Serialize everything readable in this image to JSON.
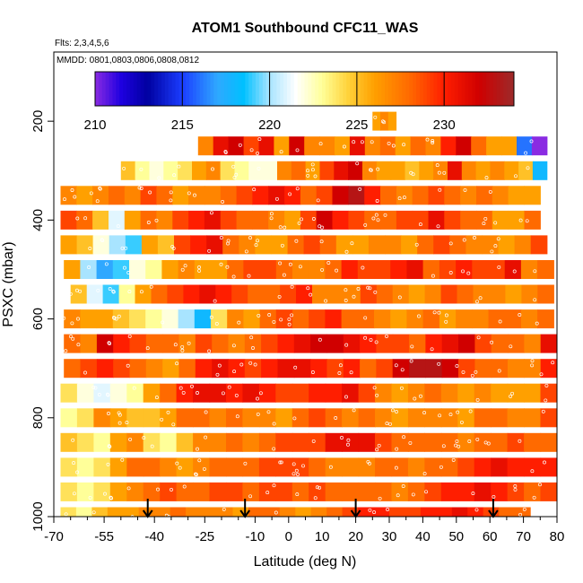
{
  "chart_data": {
    "type": "heatmap",
    "title": "ATOM1 Southbound CFC11_WAS",
    "subtitle_flights": "Flts: 2,3,4,5,6",
    "subtitle_dates": "MMDD: 0801,0803,0806,0808,0812",
    "xlabel": "Latitude (deg N)",
    "ylabel": "PSXC (mbar)",
    "xlim": [
      -70,
      80
    ],
    "ylim": [
      1000,
      60
    ],
    "x_ticks": [
      "-70",
      "-55",
      "-40",
      "-25",
      "-10",
      "0",
      "10",
      "20",
      "30",
      "40",
      "50",
      "60",
      "70",
      "80"
    ],
    "x_tick_values": [
      -70,
      -55,
      -40,
      -25,
      -10,
      0,
      10,
      20,
      30,
      40,
      50,
      60,
      70,
      80
    ],
    "x_minor_ticks": [
      -65,
      -60,
      -50,
      -45,
      -35,
      -30,
      -20,
      -15,
      -5,
      5,
      15,
      25,
      35,
      45,
      55,
      65,
      75
    ],
    "y_ticks": [
      "200",
      "400",
      "600",
      "800",
      "1000"
    ],
    "y_tick_values": [
      200,
      400,
      600,
      800,
      1000
    ],
    "colorbar": {
      "min": 210,
      "max": 234,
      "ticks": [
        "210",
        "215",
        "220",
        "225",
        "230"
      ],
      "tick_values": [
        210,
        215,
        220,
        225,
        230
      ],
      "stops": [
        {
          "v": 210,
          "c": "#8a2be2"
        },
        {
          "v": 211.5,
          "c": "#1e00e0"
        },
        {
          "v": 213,
          "c": "#0000a0"
        },
        {
          "v": 215,
          "c": "#1b3dff"
        },
        {
          "v": 217,
          "c": "#2fa8ff"
        },
        {
          "v": 218.5,
          "c": "#00c0ff"
        },
        {
          "v": 220,
          "c": "#a8e4ff"
        },
        {
          "v": 221.5,
          "c": "#ffffff"
        },
        {
          "v": 223,
          "c": "#ffff99"
        },
        {
          "v": 224.5,
          "c": "#ffd23a"
        },
        {
          "v": 226,
          "c": "#ffa000"
        },
        {
          "v": 228,
          "c": "#ff6a00"
        },
        {
          "v": 230,
          "c": "#ff1e00"
        },
        {
          "v": 232,
          "c": "#d00000"
        },
        {
          "v": 234,
          "c": "#9c2a2a"
        }
      ]
    },
    "series": [
      {
        "name": "band",
        "p": 200,
        "x0": 25,
        "x1": 32,
        "values": [
          226,
          227,
          226
        ]
      },
      {
        "name": "band",
        "p": 250,
        "x0": -27,
        "x1": 77,
        "values": [
          227,
          231,
          232,
          229,
          231,
          226,
          232,
          227,
          227,
          226,
          231,
          227,
          228,
          226,
          228,
          227,
          230,
          232,
          228,
          226,
          226,
          216,
          210
        ]
      },
      {
        "name": "band",
        "p": 300,
        "x0": -50,
        "x1": 77,
        "values": [
          225,
          223,
          222,
          223,
          224,
          226,
          227,
          224,
          223,
          222,
          222,
          227,
          228,
          226,
          229,
          231,
          232,
          227,
          226,
          226,
          225,
          226,
          227,
          231,
          227,
          226,
          227,
          226,
          225,
          218
        ]
      },
      {
        "name": "band",
        "p": 350,
        "x0": -68,
        "x1": 75,
        "values": [
          227,
          226,
          227,
          228,
          227,
          229,
          228,
          226,
          227,
          227,
          228,
          229,
          230,
          231,
          230,
          228,
          229,
          232,
          233,
          230,
          228,
          227,
          228,
          229,
          228,
          227,
          228,
          227,
          226,
          226
        ]
      },
      {
        "name": "band",
        "p": 400,
        "x0": -68,
        "x1": 75,
        "values": [
          229,
          228,
          225,
          221,
          226,
          228,
          227,
          229,
          230,
          231,
          229,
          228,
          228,
          227,
          226,
          229,
          232,
          230,
          229,
          228,
          228,
          229,
          229,
          231,
          229,
          228,
          228,
          226,
          226,
          228
        ]
      },
      {
        "name": "band",
        "p": 450,
        "x0": -68,
        "x1": 77,
        "values": [
          226,
          225,
          222,
          220,
          219,
          226,
          225,
          229,
          230,
          231,
          228,
          227,
          226,
          226,
          228,
          229,
          228,
          226,
          226,
          227,
          227,
          226,
          228,
          229,
          228,
          227,
          227,
          226,
          227,
          229
        ]
      },
      {
        "name": "band",
        "p": 500,
        "x0": -67,
        "x1": 79,
        "values": [
          226,
          220,
          217,
          219,
          222,
          223,
          226,
          227,
          226,
          226,
          228,
          229,
          229,
          228,
          227,
          227,
          228,
          230,
          229,
          229,
          230,
          231,
          228,
          229,
          230,
          229,
          229,
          231,
          227,
          228
        ]
      },
      {
        "name": "band",
        "p": 550,
        "x0": -65,
        "x1": 79,
        "values": [
          225,
          221,
          219,
          223,
          226,
          228,
          229,
          230,
          231,
          230,
          229,
          228,
          228,
          229,
          230,
          227,
          227,
          227,
          229,
          228,
          227,
          226,
          227,
          229,
          228,
          227,
          227,
          226,
          227,
          228
        ]
      },
      {
        "name": "band",
        "p": 600,
        "x0": -67,
        "x1": 79,
        "values": [
          227,
          226,
          226,
          225,
          224,
          223,
          222,
          220,
          218,
          224,
          227,
          226,
          228,
          229,
          228,
          229,
          230,
          228,
          228,
          227,
          226,
          227,
          228,
          226,
          227,
          227,
          228,
          228,
          227,
          228
        ]
      },
      {
        "name": "band",
        "p": 650,
        "x0": -67,
        "x1": 80,
        "values": [
          228,
          227,
          232,
          230,
          229,
          228,
          228,
          227,
          229,
          228,
          227,
          228,
          229,
          230,
          231,
          232,
          232,
          231,
          230,
          229,
          229,
          228,
          230,
          231,
          232,
          229,
          228,
          228,
          227,
          231
        ]
      },
      {
        "name": "band",
        "p": 700,
        "x0": -67,
        "x1": 80,
        "values": [
          228,
          229,
          230,
          229,
          228,
          227,
          226,
          228,
          230,
          231,
          230,
          229,
          230,
          231,
          231,
          230,
          229,
          230,
          228,
          229,
          232,
          233,
          233,
          232,
          229,
          228,
          228,
          227,
          227,
          230
        ]
      },
      {
        "name": "band",
        "p": 750,
        "x0": -68,
        "x1": 80,
        "values": [
          224,
          222,
          221,
          222,
          223,
          226,
          228,
          230,
          231,
          231,
          230,
          231,
          230,
          229,
          229,
          230,
          230,
          231,
          229,
          227,
          226,
          227,
          228,
          227,
          226,
          227,
          226,
          226,
          226,
          229
        ]
      },
      {
        "name": "band",
        "p": 800,
        "x0": -68,
        "x1": 80,
        "values": [
          223,
          224,
          227,
          226,
          225,
          225,
          226,
          228,
          228,
          227,
          228,
          227,
          227,
          226,
          228,
          229,
          228,
          227,
          228,
          227,
          226,
          227,
          227,
          227,
          226,
          228,
          228,
          227,
          227,
          229
        ]
      },
      {
        "name": "band",
        "p": 850,
        "x0": -68,
        "x1": 80,
        "values": [
          225,
          224,
          223,
          226,
          227,
          224,
          223,
          225,
          227,
          227,
          228,
          227,
          228,
          229,
          229,
          229,
          231,
          231,
          231,
          229,
          228,
          228,
          228,
          228,
          227,
          228,
          228,
          229,
          228,
          228
        ]
      },
      {
        "name": "band",
        "p": 900,
        "x0": -68,
        "x1": 80,
        "values": [
          224,
          223,
          224,
          226,
          228,
          228,
          227,
          226,
          227,
          228,
          228,
          228,
          229,
          229,
          229,
          228,
          227,
          227,
          227,
          228,
          228,
          227,
          228,
          228,
          229,
          230,
          231,
          230,
          230,
          230
        ]
      },
      {
        "name": "band",
        "p": 950,
        "x0": -68,
        "x1": 80,
        "values": [
          224,
          223,
          224,
          226,
          227,
          228,
          229,
          228,
          228,
          229,
          229,
          228,
          229,
          229,
          228,
          229,
          228,
          228,
          228,
          228,
          227,
          228,
          229,
          230,
          230,
          231,
          230,
          229,
          228,
          229
        ]
      },
      {
        "name": "band",
        "p": 1000,
        "x0": -68,
        "x1": 72,
        "values": [
          224,
          223,
          225,
          226,
          226,
          227,
          227,
          228,
          227,
          227,
          227,
          226,
          228,
          228,
          227,
          226,
          227,
          228,
          229,
          230,
          230,
          229,
          229,
          230,
          230,
          231,
          230,
          229,
          228,
          228
        ]
      }
    ],
    "arrows_latitude": [
      -42,
      -13,
      20,
      61
    ]
  }
}
